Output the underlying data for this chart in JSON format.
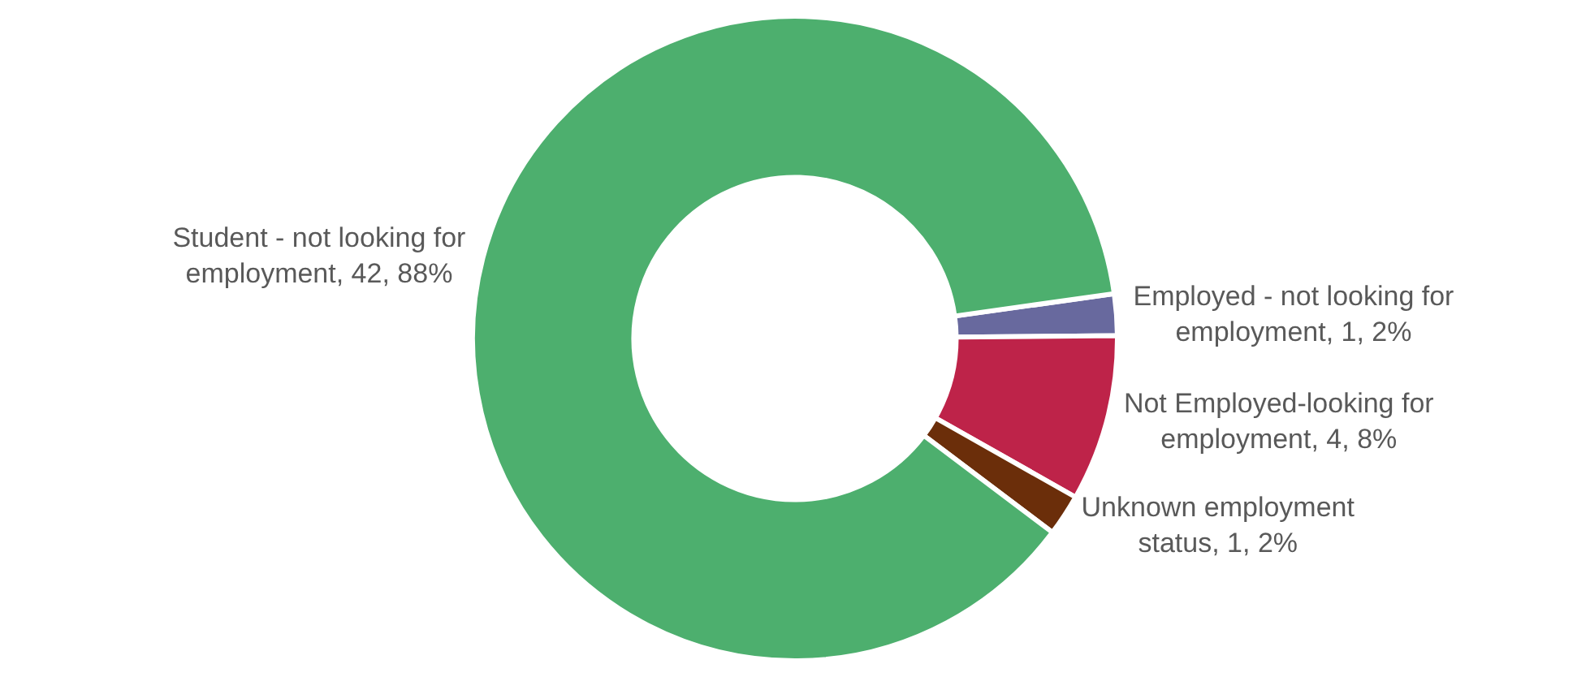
{
  "chart_data": {
    "type": "donut",
    "categories": [
      "Employed - not looking for employment",
      "Not Employed-looking for employment",
      "Unknown employment status",
      "Student - not looking for employment"
    ],
    "values": [
      1,
      4,
      1,
      42
    ],
    "colors": [
      "#68699e",
      "#be2349",
      "#6b2e0a",
      "#4daf6e"
    ],
    "value_labels": [
      "1, 2%",
      "4, 8%",
      "1, 2%",
      "42, 88%"
    ]
  }
}
